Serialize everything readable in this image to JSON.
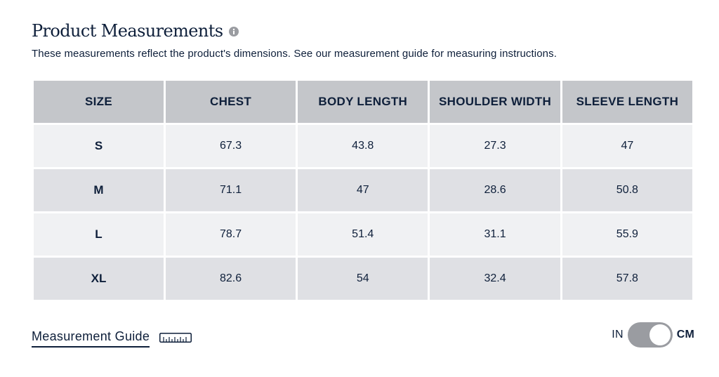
{
  "header": {
    "title": "Product Measurements",
    "info_icon": "info-icon",
    "subtitle": "These measurements reflect the product's dimensions. See our measurement guide for measuring instructions."
  },
  "table": {
    "columns": [
      "SIZE",
      "CHEST",
      "BODY LENGTH",
      "SHOULDER WIDTH",
      "SLEEVE LENGTH"
    ],
    "rows": [
      [
        "S",
        "67.3",
        "43.8",
        "27.3",
        "47"
      ],
      [
        "M",
        "71.1",
        "47",
        "28.6",
        "50.8"
      ],
      [
        "L",
        "78.7",
        "51.4",
        "31.1",
        "55.9"
      ],
      [
        "XL",
        "82.6",
        "54",
        "32.4",
        "57.8"
      ]
    ]
  },
  "footer": {
    "guide_label": "Measurement Guide",
    "guide_icon": "ruler-icon",
    "unit_left": "IN",
    "unit_right": "CM",
    "unit_selected": "CM"
  },
  "colors": {
    "text": "#0e1f3a",
    "header_bg": "#c4c6ca",
    "row_light": "#f0f1f3",
    "row_dark": "#dfe0e4",
    "toggle_track": "#9a9ca1"
  }
}
